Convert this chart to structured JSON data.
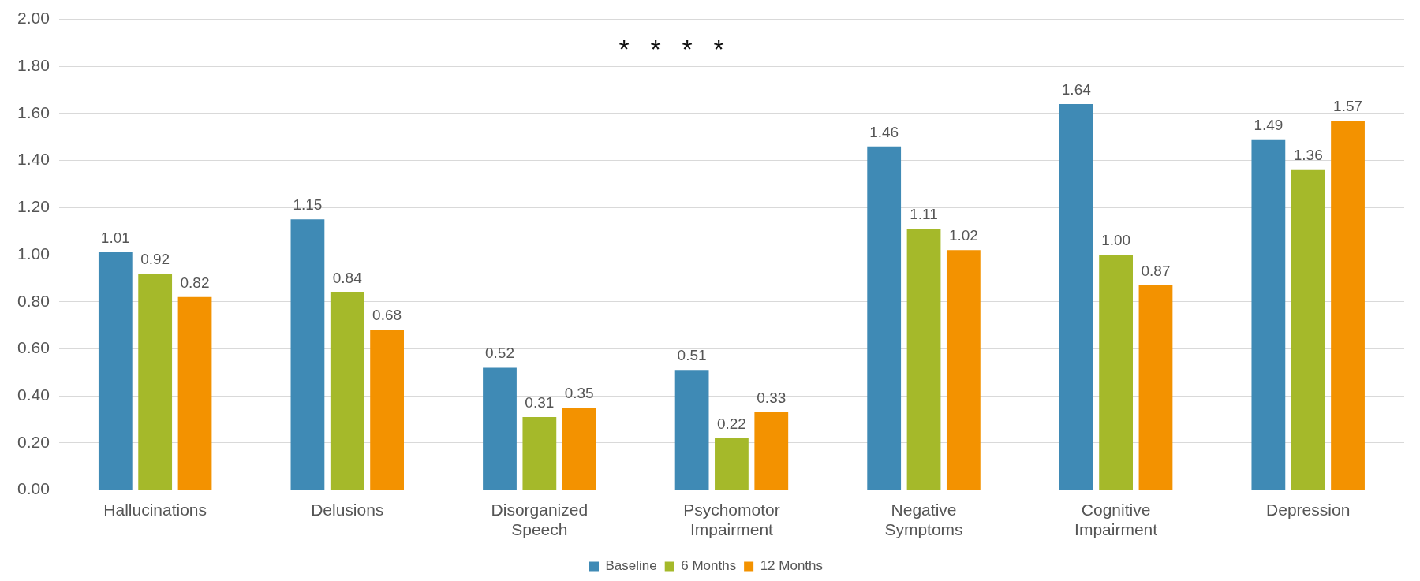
{
  "chart_data": {
    "type": "bar",
    "categories": [
      "Hallucinations",
      "Delusions",
      "Disorganized Speech",
      "Psychomotor Impairment",
      "Negative Symptoms",
      "Cognitive Impairment",
      "Depression"
    ],
    "series": [
      {
        "name": "Baseline",
        "color": "#3f8ab5",
        "values": [
          1.01,
          1.15,
          0.52,
          0.51,
          1.46,
          1.64,
          1.49
        ],
        "value_labels": [
          "1.01",
          "1.15",
          "0.52",
          "0.51",
          "1.46",
          "1.64",
          "1.49"
        ]
      },
      {
        "name": "6 Months",
        "color": "#a5b92a",
        "values": [
          0.92,
          0.84,
          0.31,
          0.22,
          1.11,
          1.0,
          1.36
        ],
        "value_labels": [
          "0.92",
          "0.84",
          "0.31",
          "0.22",
          "1.11",
          "1.00",
          "1.36"
        ]
      },
      {
        "name": "12 Months",
        "color": "#f39200",
        "values": [
          0.82,
          0.68,
          0.35,
          0.33,
          1.02,
          0.87,
          1.57
        ],
        "value_labels": [
          "0.82",
          "0.68",
          "0.35",
          "0.33",
          "1.02",
          "0.87",
          "1.57"
        ]
      }
    ],
    "ylim": [
      0,
      2
    ],
    "yticks": [
      {
        "value": 0,
        "label": "0.00"
      },
      {
        "value": 0.2,
        "label": "0.20"
      },
      {
        "value": 0.4,
        "label": "0.40"
      },
      {
        "value": 0.6,
        "label": "0.60"
      },
      {
        "value": 0.8,
        "label": "0.80"
      },
      {
        "value": 1,
        "label": "1.00"
      },
      {
        "value": 1.2,
        "label": "1.20"
      },
      {
        "value": 1.4,
        "label": "1.40"
      },
      {
        "value": 1.6,
        "label": "1.60"
      },
      {
        "value": 1.8,
        "label": "1.80"
      },
      {
        "value": 2,
        "label": "2.00"
      }
    ],
    "grid": "y",
    "legend": "bottom",
    "annotations": [
      "*",
      "*",
      "*",
      "*"
    ]
  }
}
